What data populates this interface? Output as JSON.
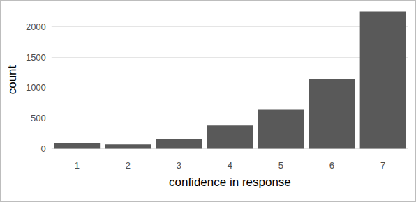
{
  "chart_data": {
    "type": "bar",
    "x_label": "confidence in response",
    "y_label": "count",
    "categories": [
      "1",
      "2",
      "3",
      "4",
      "5",
      "6",
      "7"
    ],
    "values": [
      90,
      70,
      160,
      380,
      640,
      1140,
      2250
    ],
    "color": "#595959",
    "ylim": [
      -110,
      2370
    ],
    "yticks": [
      0,
      500,
      1000,
      1500,
      2000
    ],
    "grid": true
  }
}
